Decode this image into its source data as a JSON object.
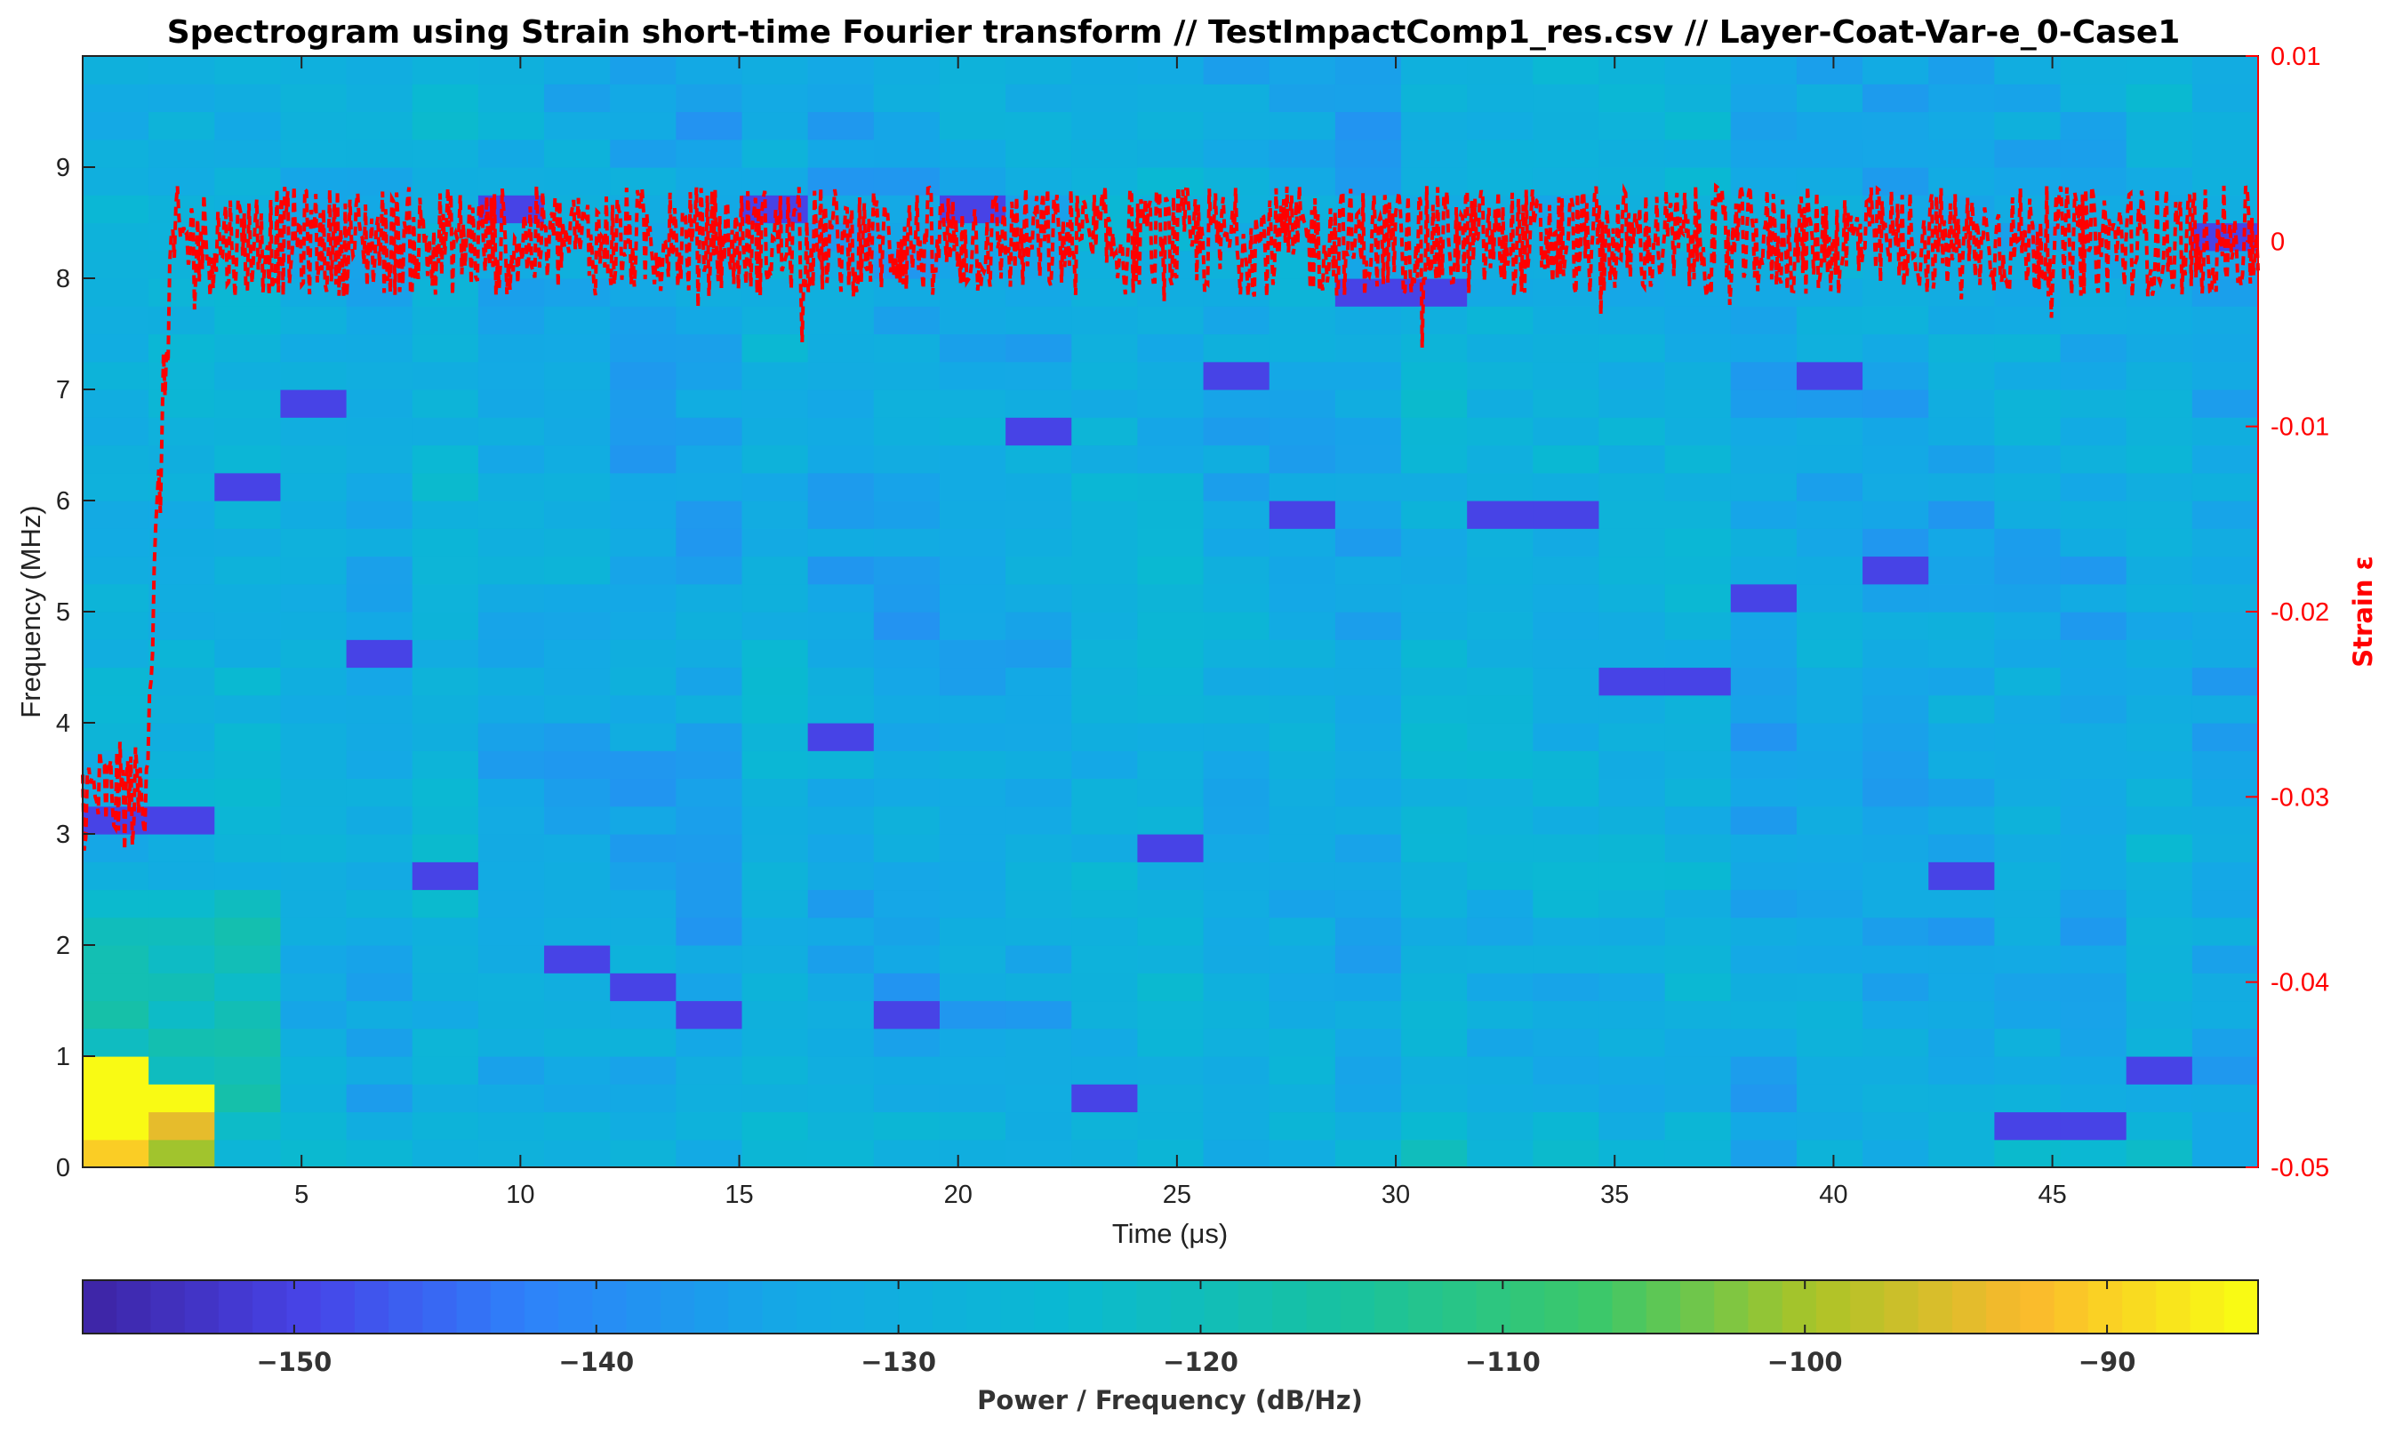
{
  "chart_data": {
    "type": "heatmap",
    "title": "Spectrogram using Strain short-time Fourier transform //  TestImpactComp1_res.csv  // Layer-Coat-Var-e_0-Case1",
    "xlabel": "Time (μs)",
    "ylabel": "Frequency (MHz)",
    "y2label": "Strain ε",
    "colorbar_label": "Power / Frequency (dB/Hz)",
    "xlim": [
      0,
      49.7
    ],
    "ylim": [
      0,
      10
    ],
    "y2lim": [
      -0.05,
      0.01
    ],
    "clim": [
      -157,
      -85
    ],
    "x_ticks": [
      5,
      10,
      15,
      20,
      25,
      30,
      35,
      40,
      45
    ],
    "y_ticks": [
      0,
      1,
      2,
      3,
      4,
      5,
      6,
      7,
      8,
      9
    ],
    "y2_ticks": [
      0.01,
      0,
      -0.01,
      -0.02,
      -0.03,
      -0.04,
      -0.05
    ],
    "y2_tick_labels": [
      "0.01",
      "0",
      "-0.01",
      "-0.02",
      "-0.03",
      "-0.04",
      "-0.05"
    ],
    "c_ticks": [
      -150,
      -140,
      -130,
      -120,
      -110,
      -100,
      -90
    ],
    "colormap": "parula",
    "time_bins": 33,
    "freq_bins": 40,
    "grid": false,
    "strain_series": {
      "name": "Strain ε",
      "color": "#ff0000",
      "style": "dashed",
      "initial_level": -0.03,
      "initial_until_us": 1.4,
      "rise_at_us": 1.5,
      "steady_level": 0.0,
      "noise_amplitude": 0.003
    }
  }
}
